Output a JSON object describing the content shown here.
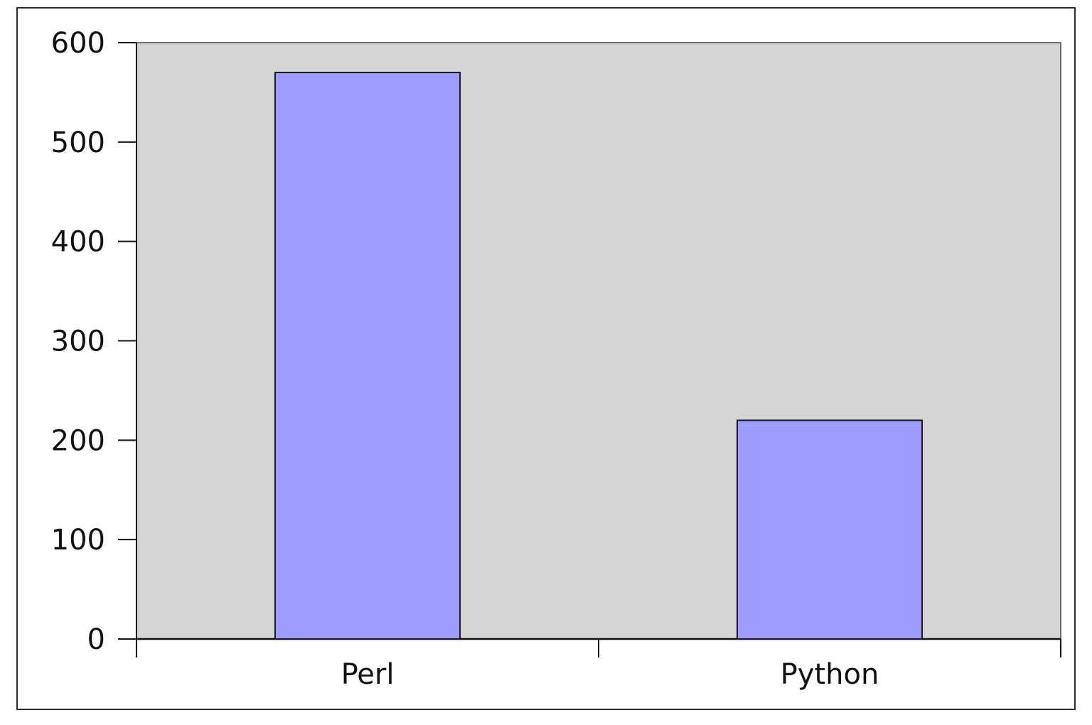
{
  "chart_data": {
    "type": "bar",
    "categories": [
      "Perl",
      "Python"
    ],
    "values": [
      570,
      220
    ],
    "ylim": [
      0,
      600
    ],
    "yticks": [
      0,
      100,
      200,
      300,
      400,
      500,
      600
    ],
    "grid": false,
    "legend": "none"
  },
  "colors": {
    "bar_fill": "#a09bff",
    "plot_background": "#d5d5d5",
    "axis": "#111111"
  }
}
